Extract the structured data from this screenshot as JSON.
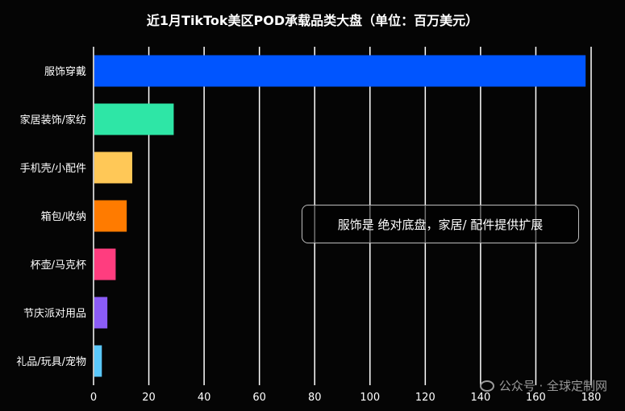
{
  "chart_data": {
    "type": "bar",
    "orientation": "horizontal",
    "title": "近1月TikTok美区POD承载品类大盘（单位：百万美元）",
    "categories": [
      "服饰穿戴",
      "家居装饰/家纺",
      "手机壳/小配件",
      "箱包/收纳",
      "杯壶/马克杯",
      "节庆派对用品",
      "礼品/玩具/宠物"
    ],
    "values": [
      178,
      29,
      14,
      12,
      8,
      5,
      3
    ],
    "colors": [
      "#0055ff",
      "#2ee6a6",
      "#ffc857",
      "#ff7b00",
      "#ff3d7f",
      "#8b5cf6",
      "#5bc8fb"
    ],
    "xlim": [
      0,
      180
    ],
    "xticks": [
      "0",
      "20",
      "40",
      "60",
      "80",
      "100",
      "120",
      "140",
      "160",
      "180"
    ],
    "grid": true,
    "annotation": "服饰是 绝对底盘，家居/ 配件提供扩展"
  },
  "watermark": "公众号 · 全球定制网"
}
